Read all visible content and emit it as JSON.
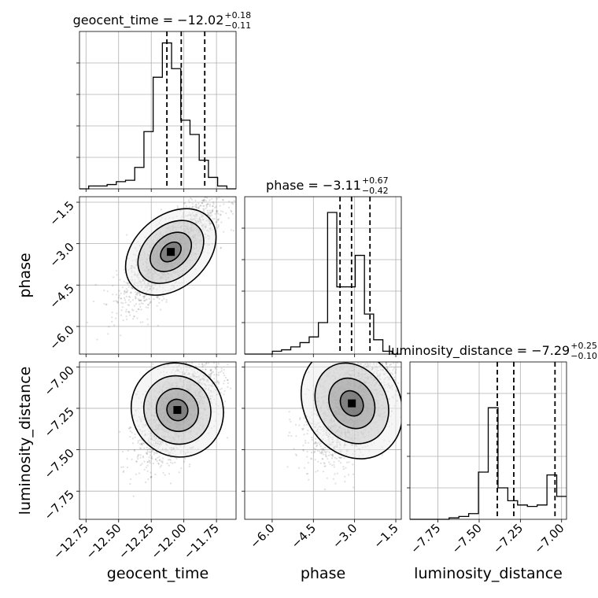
{
  "chart_data": {
    "type": "corner",
    "parameters": [
      "geocent_time",
      "phase",
      "luminosity_distance"
    ],
    "titles": [
      {
        "param": "geocent_time",
        "prefix": "geocent_time = ",
        "median": "−12.02",
        "plus": "+0.18",
        "minus": "−0.11"
      },
      {
        "param": "phase",
        "prefix": "phase = ",
        "median": "−3.11",
        "plus": "+0.67",
        "minus": "−0.42"
      },
      {
        "param": "luminosity_distance",
        "prefix": "luminosity_distance = ",
        "median": "−7.29",
        "plus": "+0.25",
        "minus": "−0.10"
      }
    ],
    "ranges": {
      "geocent_time": [
        -12.8,
        -11.6
      ],
      "phase": [
        -7.0,
        -1.3
      ],
      "luminosity_distance": [
        -7.92,
        -6.97
      ]
    },
    "ticks": {
      "geocent_time": {
        "values": [
          -12.75,
          -12.5,
          -12.25,
          -12.0,
          -11.75
        ],
        "labels": [
          "−12.75",
          "−12.50",
          "−12.25",
          "−12.00",
          "−11.75"
        ]
      },
      "phase": {
        "values": [
          -6.0,
          -4.5,
          -3.0,
          -1.5
        ],
        "labels": [
          "−6.0",
          "−4.5",
          "−3.0",
          "−1.5"
        ]
      },
      "luminosity_distance": {
        "values": [
          -7.75,
          -7.5,
          -7.25,
          -7.0
        ],
        "labels": [
          "−7.75",
          "−7.50",
          "−7.25",
          "−7.00"
        ]
      }
    },
    "quantiles": {
      "geocent_time": [
        -12.13,
        -12.02,
        -11.84
      ],
      "phase": [
        -3.53,
        -3.11,
        -2.44
      ],
      "luminosity_distance": [
        -7.39,
        -7.29,
        -7.04
      ]
    },
    "histograms": {
      "geocent_time": [
        0,
        0.02,
        0.02,
        0.03,
        0.05,
        0.06,
        0.15,
        0.4,
        0.78,
        1.02,
        0.84,
        0.48,
        0.38,
        0.2,
        0.08,
        0.02,
        0
      ],
      "phase": [
        0,
        0,
        0,
        0.02,
        0.03,
        0.05,
        0.08,
        0.12,
        0.22,
        0.99,
        0.47,
        0.47,
        0.69,
        0.28,
        0.1,
        0.02,
        0
      ],
      "luminosity_distance": [
        0,
        0,
        0,
        0,
        0.01,
        0.02,
        0.04,
        0.33,
        0.78,
        0.22,
        0.13,
        0.1,
        0.09,
        0.1,
        0.31,
        0.16
      ]
    },
    "hist_bins": {
      "geocent_time": [
        -12.8,
        -11.6
      ],
      "phase": [
        -7.0,
        -1.3
      ],
      "luminosity_distance": [
        -7.92,
        -6.97
      ]
    },
    "grid": true,
    "xlabels": [
      "geocent_time",
      "phase",
      "luminosity_distance"
    ],
    "ylabels": [
      "",
      "phase",
      "luminosity_distance"
    ]
  }
}
